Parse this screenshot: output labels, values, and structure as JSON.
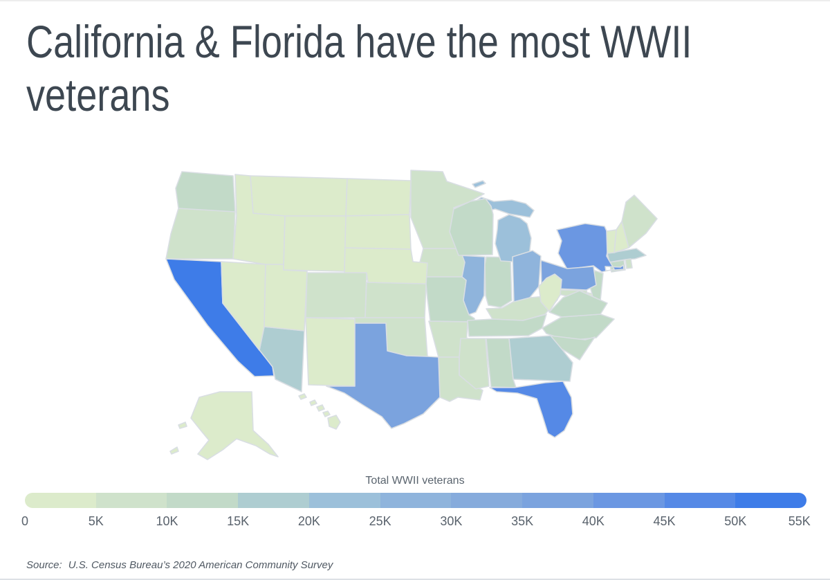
{
  "title": {
    "lines": [
      "California & Florida have the most WWII",
      "veterans"
    ],
    "text": "California & Florida have the most WWII veterans"
  },
  "legend": {
    "title": "Total WWII veterans",
    "tick_labels": [
      "0",
      "5K",
      "10K",
      "15K",
      "20K",
      "25K",
      "30K",
      "35K",
      "40K",
      "45K",
      "50K",
      "55K"
    ],
    "bucket_colors": [
      "#dcebcb",
      "#cfe2cb",
      "#c2dac8",
      "#aecdd1",
      "#9cc0da",
      "#8fb4dc",
      "#86abdc",
      "#7ba3de",
      "#6b97e2",
      "#5589e6",
      "#3e7ce8"
    ],
    "min_value": 0,
    "max_value": 55000,
    "bucket_size": 5000
  },
  "source": {
    "label": "Source:",
    "text": "U.S. Census Bureau’s 2020 American Community Survey"
  },
  "colors": {
    "background": "#ffffff",
    "title_text": "#3d4751",
    "muted_text": "#59626c",
    "state_border": "#d9dee3",
    "scale_low": "#dcebcb",
    "scale_high": "#3e7ce8"
  },
  "chart_data": {
    "type": "choropleth",
    "region": "United States (states)",
    "title": "California & Florida have the most WWII veterans",
    "value_label": "Total WWII veterans",
    "unit": "veterans",
    "scale": {
      "min": 0,
      "max": 55000,
      "bucket_size": 5000
    },
    "states": [
      {
        "name": "Alabama",
        "abbr": "AL",
        "value": 10500,
        "color": "#c2dac8"
      },
      {
        "name": "Alaska",
        "abbr": "AK",
        "value": 1000,
        "color": "#dcebcb"
      },
      {
        "name": "Arizona",
        "abbr": "AZ",
        "value": 16000,
        "color": "#aecdd1"
      },
      {
        "name": "Arkansas",
        "abbr": "AR",
        "value": 5500,
        "color": "#cfe2cb"
      },
      {
        "name": "California",
        "abbr": "CA",
        "value": 52000,
        "color": "#3e7ce8"
      },
      {
        "name": "Colorado",
        "abbr": "CO",
        "value": 9500,
        "color": "#cfe2cb"
      },
      {
        "name": "Connecticut",
        "abbr": "CT",
        "value": 12000,
        "color": "#c2dac8"
      },
      {
        "name": "Delaware",
        "abbr": "DE",
        "value": 3000,
        "color": "#dcebcb"
      },
      {
        "name": "Florida",
        "abbr": "FL",
        "value": 48500,
        "color": "#5589e6"
      },
      {
        "name": "Georgia",
        "abbr": "GA",
        "value": 16500,
        "color": "#aecdd1"
      },
      {
        "name": "Hawaii",
        "abbr": "HI",
        "value": 4500,
        "color": "#dcebcb"
      },
      {
        "name": "Idaho",
        "abbr": "ID",
        "value": 4000,
        "color": "#dcebcb"
      },
      {
        "name": "Illinois",
        "abbr": "IL",
        "value": 27000,
        "color": "#8fb4dc"
      },
      {
        "name": "Indiana",
        "abbr": "IN",
        "value": 11500,
        "color": "#c2dac8"
      },
      {
        "name": "Iowa",
        "abbr": "IA",
        "value": 8000,
        "color": "#cfe2cb"
      },
      {
        "name": "Kansas",
        "abbr": "KS",
        "value": 7500,
        "color": "#cfe2cb"
      },
      {
        "name": "Kentucky",
        "abbr": "KY",
        "value": 8000,
        "color": "#cfe2cb"
      },
      {
        "name": "Louisiana",
        "abbr": "LA",
        "value": 8500,
        "color": "#cfe2cb"
      },
      {
        "name": "Maine",
        "abbr": "ME",
        "value": 6500,
        "color": "#cfe2cb"
      },
      {
        "name": "Maryland",
        "abbr": "MD",
        "value": 9500,
        "color": "#cfe2cb"
      },
      {
        "name": "Massachusetts",
        "abbr": "MA",
        "value": 16000,
        "color": "#aecdd1"
      },
      {
        "name": "Michigan",
        "abbr": "MI",
        "value": 22000,
        "color": "#9cc0da"
      },
      {
        "name": "Minnesota",
        "abbr": "MN",
        "value": 9000,
        "color": "#cfe2cb"
      },
      {
        "name": "Mississippi",
        "abbr": "MS",
        "value": 5500,
        "color": "#cfe2cb"
      },
      {
        "name": "Missouri",
        "abbr": "MO",
        "value": 14000,
        "color": "#c2dac8"
      },
      {
        "name": "Montana",
        "abbr": "MT",
        "value": 3000,
        "color": "#dcebcb"
      },
      {
        "name": "Nebraska",
        "abbr": "NE",
        "value": 4500,
        "color": "#dcebcb"
      },
      {
        "name": "Nevada",
        "abbr": "NV",
        "value": 4500,
        "color": "#dcebcb"
      },
      {
        "name": "New Hampshire",
        "abbr": "NH",
        "value": 3500,
        "color": "#dcebcb"
      },
      {
        "name": "New Jersey",
        "abbr": "NJ",
        "value": 14000,
        "color": "#c2dac8"
      },
      {
        "name": "New Mexico",
        "abbr": "NM",
        "value": 4500,
        "color": "#dcebcb"
      },
      {
        "name": "New York",
        "abbr": "NY",
        "value": 41500,
        "color": "#6b97e2"
      },
      {
        "name": "North Carolina",
        "abbr": "NC",
        "value": 14500,
        "color": "#c2dac8"
      },
      {
        "name": "North Dakota",
        "abbr": "ND",
        "value": 2500,
        "color": "#dcebcb"
      },
      {
        "name": "Ohio",
        "abbr": "OH",
        "value": 27500,
        "color": "#8fb4dc"
      },
      {
        "name": "Oklahoma",
        "abbr": "OK",
        "value": 7000,
        "color": "#cfe2cb"
      },
      {
        "name": "Oregon",
        "abbr": "OR",
        "value": 9000,
        "color": "#cfe2cb"
      },
      {
        "name": "Pennsylvania",
        "abbr": "PA",
        "value": 36500,
        "color": "#7ba3de"
      },
      {
        "name": "Rhode Island",
        "abbr": "RI",
        "value": 5500,
        "color": "#cfe2cb"
      },
      {
        "name": "South Carolina",
        "abbr": "SC",
        "value": 11000,
        "color": "#c2dac8"
      },
      {
        "name": "South Dakota",
        "abbr": "SD",
        "value": 3000,
        "color": "#dcebcb"
      },
      {
        "name": "Tennessee",
        "abbr": "TN",
        "value": 12500,
        "color": "#c2dac8"
      },
      {
        "name": "Texas",
        "abbr": "TX",
        "value": 36000,
        "color": "#7ba3de"
      },
      {
        "name": "Utah",
        "abbr": "UT",
        "value": 4500,
        "color": "#dcebcb"
      },
      {
        "name": "Vermont",
        "abbr": "VT",
        "value": 2500,
        "color": "#dcebcb"
      },
      {
        "name": "Virginia",
        "abbr": "VA",
        "value": 13500,
        "color": "#c2dac8"
      },
      {
        "name": "Washington",
        "abbr": "WA",
        "value": 13000,
        "color": "#c2dac8"
      },
      {
        "name": "West Virginia",
        "abbr": "WV",
        "value": 4500,
        "color": "#dcebcb"
      },
      {
        "name": "Wisconsin",
        "abbr": "WI",
        "value": 12500,
        "color": "#c2dac8"
      },
      {
        "name": "Wyoming",
        "abbr": "WY",
        "value": 2000,
        "color": "#dcebcb"
      }
    ]
  }
}
